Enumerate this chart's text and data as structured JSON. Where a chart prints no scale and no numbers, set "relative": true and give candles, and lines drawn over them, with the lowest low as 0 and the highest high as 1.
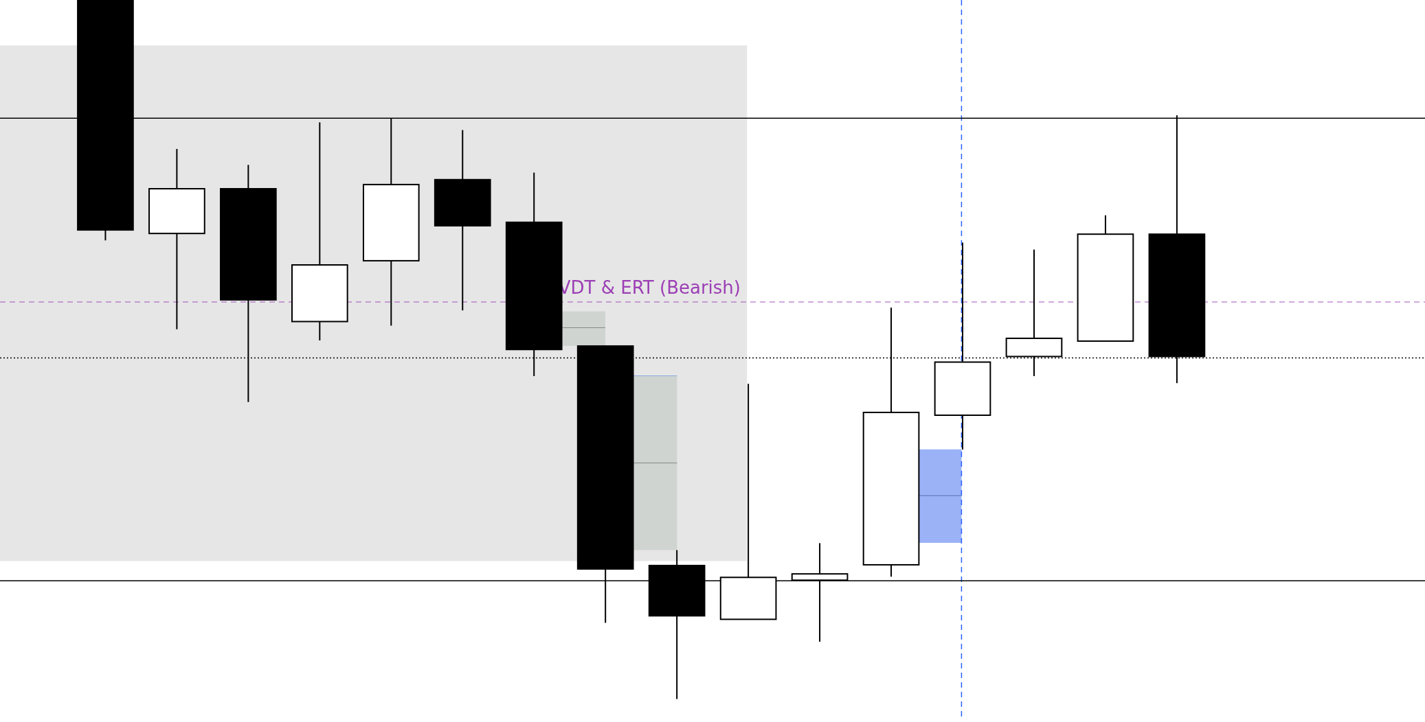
{
  "chart_data": {
    "type": "candlestick",
    "relative": true,
    "categories": [
      null,
      null,
      null,
      null,
      null,
      null,
      null,
      null,
      null,
      null,
      null,
      null,
      null,
      null,
      null,
      null
    ],
    "ohlc": [
      [
        1,
        1,
        0.656,
        0.671
      ],
      [
        0.666,
        0.787,
        0.529,
        0.73
      ],
      [
        0.73,
        0.764,
        0.425,
        0.571
      ],
      [
        0.54,
        0.825,
        0.513,
        0.621
      ],
      [
        0.627,
        0.831,
        0.534,
        0.736
      ],
      [
        0.743,
        0.814,
        0.556,
        0.677
      ],
      [
        0.682,
        0.753,
        0.462,
        0.5
      ],
      [
        0.505,
        0.505,
        0.109,
        0.186
      ],
      [
        0.191,
        0.213,
        0,
        0.119
      ],
      [
        0.114,
        0.451,
        0.114,
        0.174
      ],
      [
        0.17,
        0.223,
        0.082,
        0.179
      ],
      [
        0.192,
        0.56,
        0.175,
        0.41
      ],
      [
        0.406,
        0.653,
        0.357,
        0.482
      ],
      [
        0.49,
        0.643,
        0.462,
        0.516
      ],
      [
        0.512,
        0.692,
        0.512,
        0.665
      ],
      [
        0.665,
        0.835,
        0.452,
        0.49
      ]
    ],
    "ref_lines": [
      {
        "axis": "y",
        "value": 0.488,
        "line_style": "dotted",
        "color": "#000000"
      },
      {
        "axis": "y",
        "value": 0.568,
        "line_style": "dashed",
        "color": "#9c3fb5",
        "label": "VDT & ERT (Bearish)"
      },
      {
        "axis": "y",
        "value": 0.831,
        "line_style": "solid",
        "color": "#000000"
      },
      {
        "axis": "y",
        "value": 0.169,
        "line_style": "solid",
        "color": "#000000"
      }
    ]
  }
}
